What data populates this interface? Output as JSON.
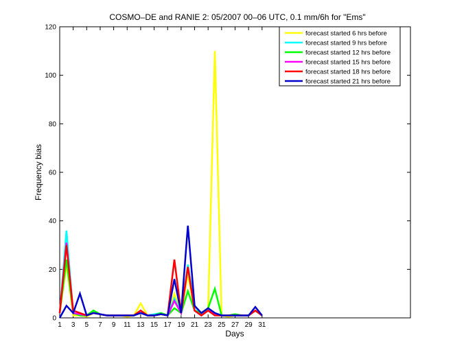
{
  "chart_data": {
    "type": "line",
    "title": "COSMO–DE and RANIE 2: 05/2007 00–06 UTC, 0.1 mm/6h for \"Ems\"",
    "xlabel": "Days",
    "ylabel": "Frequency bias",
    "xlim": [
      1,
      53
    ],
    "ylim": [
      0,
      120
    ],
    "xticks": [
      1,
      3,
      5,
      7,
      9,
      11,
      13,
      15,
      17,
      19,
      21,
      23,
      25,
      27,
      29,
      31
    ],
    "yticks": [
      0,
      20,
      40,
      60,
      80,
      100,
      120
    ],
    "grid": false,
    "legend_position": "top-right",
    "x": [
      1,
      2,
      3,
      4,
      5,
      6,
      7,
      8,
      9,
      10,
      11,
      12,
      13,
      14,
      15,
      16,
      17,
      18,
      19,
      20,
      21,
      22,
      23,
      24,
      25,
      26,
      27,
      28,
      29,
      30,
      31
    ],
    "series": [
      {
        "name": "forecast started 6 hrs before",
        "color": "#ffff00",
        "values": [
          2,
          22,
          1,
          1,
          0.5,
          2,
          1.5,
          1,
          1,
          1,
          0.5,
          1,
          6,
          1,
          1,
          1.5,
          1,
          10,
          2,
          18,
          3,
          2,
          3,
          110,
          1,
          0.5,
          1,
          1,
          1,
          3,
          1
        ]
      },
      {
        "name": "forecast started 9 hrs before",
        "color": "#00ffff",
        "values": [
          2,
          36,
          2,
          1,
          1,
          3,
          1.5,
          1,
          1,
          1,
          1,
          1,
          3,
          1,
          1.5,
          2,
          1,
          8,
          2,
          22,
          5,
          1,
          4,
          2,
          1,
          1,
          1,
          1,
          1,
          3,
          1
        ]
      },
      {
        "name": "forecast started 12 hrs before",
        "color": "#00ff00",
        "values": [
          2,
          24,
          2,
          1,
          1,
          3,
          1.5,
          1,
          1,
          1,
          1,
          1,
          3,
          1,
          1,
          2,
          1,
          4,
          2,
          11,
          3,
          2,
          4,
          12,
          1,
          1,
          1.5,
          1,
          1,
          3,
          1
        ]
      },
      {
        "name": "forecast started 15 hrs before",
        "color": "#ff00ff",
        "values": [
          2,
          31,
          2,
          1.5,
          1,
          2,
          1.5,
          1,
          1,
          1,
          1,
          1,
          3,
          1,
          1,
          1.5,
          1,
          7,
          2,
          21,
          3,
          1,
          3,
          1.5,
          1,
          1,
          1,
          1,
          1,
          3,
          1
        ]
      },
      {
        "name": "forecast started 18 hrs before",
        "color": "#ff0000",
        "values": [
          2,
          30,
          3,
          2,
          1,
          2,
          1.5,
          1,
          1,
          1,
          1,
          1,
          3,
          1,
          1,
          1.5,
          1,
          24,
          2,
          21,
          3,
          1,
          3,
          1,
          1,
          1,
          1,
          1,
          1,
          3,
          1
        ]
      },
      {
        "name": "forecast started 21 hrs before",
        "color": "#0000cc",
        "values": [
          0,
          5,
          2,
          10,
          1,
          2,
          1.5,
          1,
          1,
          1,
          1,
          1,
          2,
          1,
          1,
          1.5,
          1,
          16,
          2,
          38,
          5,
          2,
          4,
          2,
          1,
          1,
          1,
          1,
          1,
          4.5,
          1
        ]
      }
    ]
  }
}
